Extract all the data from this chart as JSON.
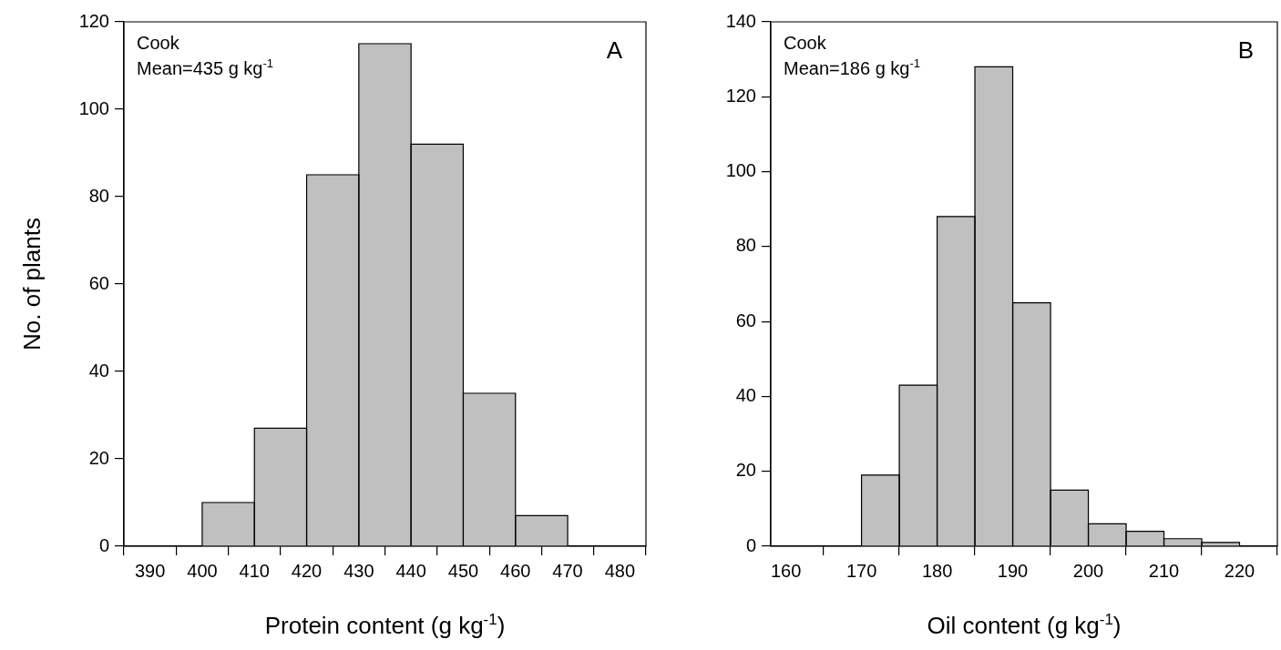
{
  "chart_data": [
    {
      "type": "histogram",
      "xlabel": "Protein content (g kg$^{-1}$)",
      "ylabel": "No. of plants",
      "annotations": [
        "Cook",
        "Mean=435 g kg$^{-1}$",
        "A"
      ],
      "bins": [
        400,
        410,
        420,
        430,
        440,
        450,
        460,
        470
      ],
      "values": [
        10,
        27,
        85,
        115,
        92,
        35,
        7
      ],
      "color": "#c0c0c0",
      "xlim": [
        385,
        485
      ],
      "xticks": [
        390,
        400,
        410,
        420,
        430,
        440,
        450,
        460,
        470,
        480
      ],
      "ylim": [
        0,
        120
      ],
      "yticks": [
        0,
        20,
        40,
        60,
        80,
        100,
        120
      ],
      "grid": false,
      "legend": false
    },
    {
      "type": "histogram",
      "xlabel": "Oil content (g kg$^{-1}$)",
      "annotations": [
        "Cook",
        "Mean=186 g kg$^{-1}$",
        "B"
      ],
      "bins": [
        170,
        175,
        180,
        185,
        190,
        195,
        200,
        205,
        210,
        215,
        220
      ],
      "values": [
        19,
        43,
        88,
        128,
        65,
        15,
        6,
        4,
        2,
        1
      ],
      "color": "#c0c0c0",
      "xlim": [
        158,
        225
      ],
      "xticks": [
        160,
        170,
        180,
        190,
        200,
        210,
        220
      ],
      "ylim": [
        0,
        140
      ],
      "yticks": [
        0,
        20,
        40,
        60,
        80,
        100,
        120,
        140
      ],
      "grid": false,
      "legend": false
    }
  ]
}
